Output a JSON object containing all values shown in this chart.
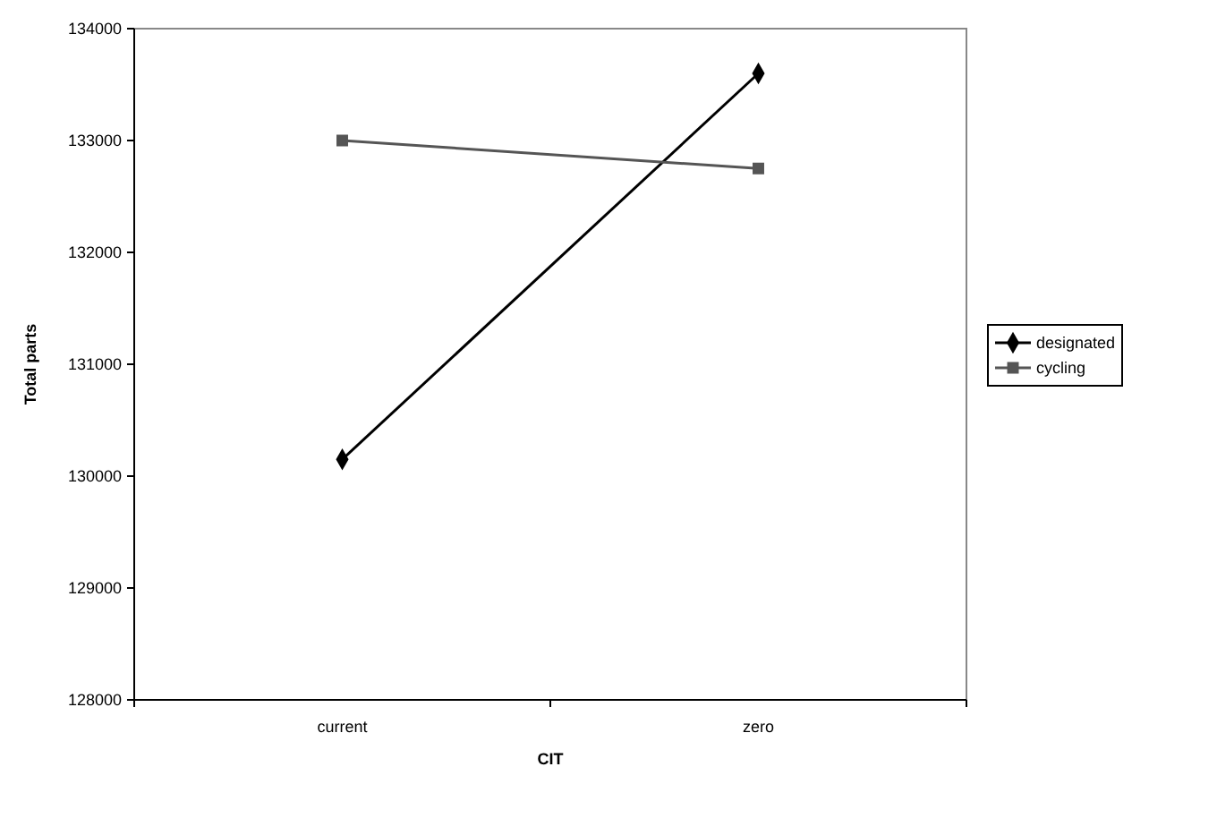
{
  "chart_data": {
    "type": "line",
    "xlabel": "CIT",
    "ylabel": "Total parts",
    "categories": [
      "current",
      "zero"
    ],
    "series": [
      {
        "name": "designated",
        "color": "#000000",
        "marker": "diamond",
        "values": [
          130150,
          133600
        ]
      },
      {
        "name": "cycling",
        "color": "#555555",
        "marker": "square",
        "values": [
          133000,
          132750
        ]
      }
    ],
    "ylim": [
      128000,
      134000
    ],
    "yticks": [
      128000,
      129000,
      130000,
      131000,
      132000,
      133000,
      134000
    ],
    "grid": false,
    "legend": "right"
  }
}
